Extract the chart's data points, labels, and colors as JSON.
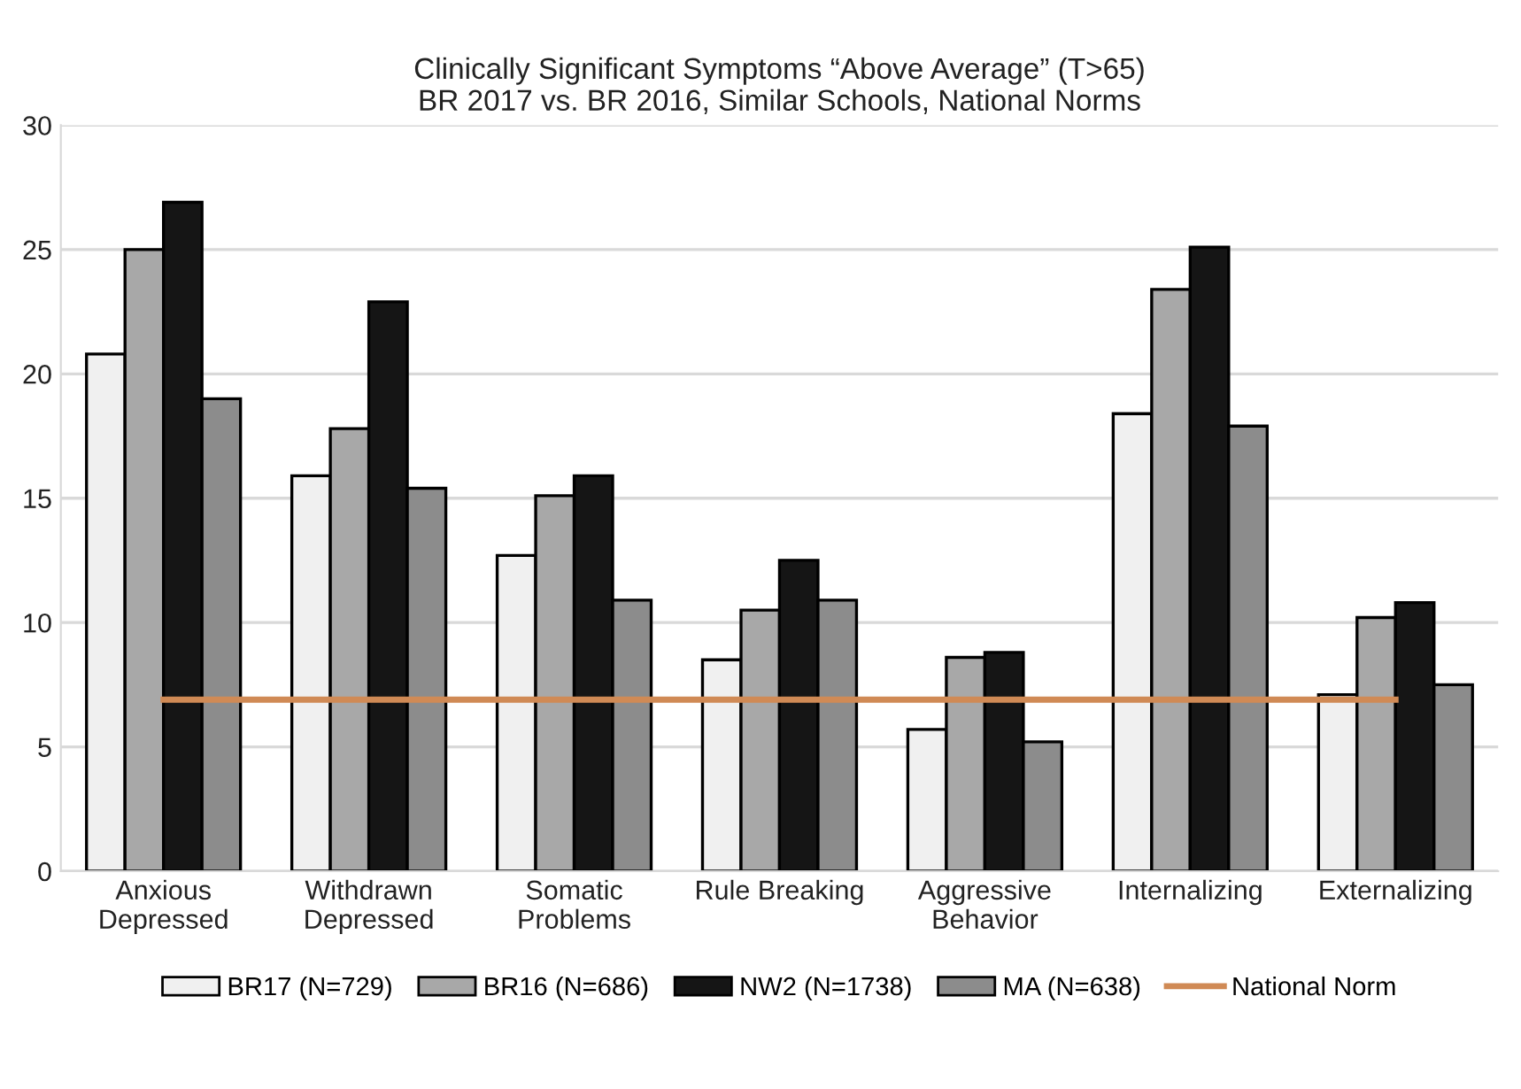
{
  "chart_data": {
    "type": "bar",
    "title": "Clinically Significant Symptoms “Above Average” (T>65)\nBR 2017 vs. BR 2016, Similar Schools, National Norms",
    "categories": [
      "Anxious\nDepressed",
      "Withdrawn\nDepressed",
      "Somatic\nProblems",
      "Rule Breaking",
      "Aggressive\nBehavior",
      "Internalizing",
      "Externalizing"
    ],
    "series": [
      {
        "name": "BR17 (N=729)",
        "color": "#f0f0f0",
        "values": [
          20.8,
          15.9,
          12.7,
          8.5,
          5.7,
          18.4,
          7.1
        ]
      },
      {
        "name": "BR16 (N=686)",
        "color": "#a8a8a8",
        "values": [
          25.0,
          17.8,
          15.1,
          10.5,
          8.6,
          23.4,
          10.2
        ]
      },
      {
        "name": "NW2 (N=1738)",
        "color": "#151515",
        "values": [
          26.9,
          22.9,
          15.9,
          12.5,
          8.8,
          25.1,
          10.8
        ]
      },
      {
        "name": "MA (N=638)",
        "color": "#8c8c8c",
        "values": [
          19.0,
          15.4,
          10.9,
          10.9,
          5.2,
          17.9,
          7.5
        ]
      },
      {
        "name": "National Norm",
        "type": "line",
        "color": "#d08a55",
        "values": [
          6.9,
          6.9,
          6.9,
          6.9,
          6.9,
          6.9,
          6.9
        ]
      }
    ],
    "ylim": [
      0,
      30
    ],
    "yticks": [
      0,
      5,
      10,
      15,
      20,
      25,
      30
    ],
    "grid": "y",
    "legend": "bottom"
  }
}
